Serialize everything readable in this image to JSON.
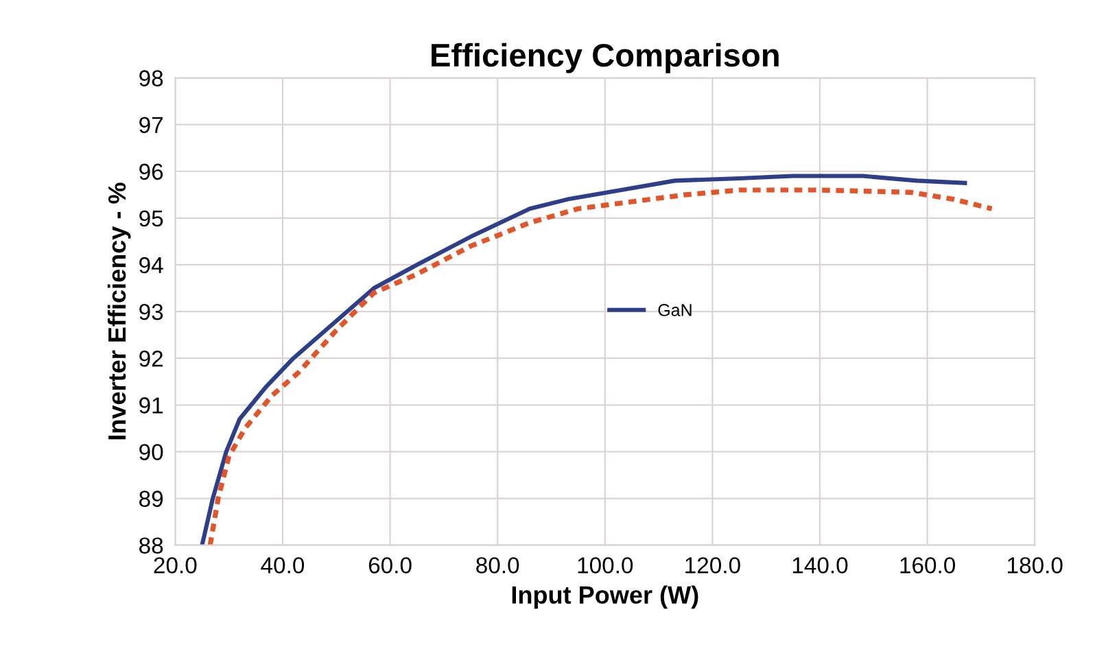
{
  "chart_data": {
    "type": "line",
    "title": "Efficiency Comparison",
    "xlabel": "Input Power (W)",
    "ylabel": "Inverter Efficiency - %",
    "series": [
      {
        "name": "GaN",
        "color": "#2e3f8a",
        "line_style": "solid",
        "x": [
          25,
          27,
          29.5,
          32,
          37,
          42,
          50,
          57,
          65,
          75,
          86,
          93,
          103,
          113,
          125,
          135,
          148,
          158,
          167
        ],
        "values": [
          88,
          89,
          90,
          90.7,
          91.4,
          92,
          92.8,
          93.5,
          94,
          94.6,
          95.2,
          95.4,
          95.6,
          95.8,
          95.85,
          95.9,
          95.9,
          95.8,
          95.75
        ]
      },
      {
        "color": "#e0552a",
        "line_style": "dashed",
        "x": [
          26.5,
          28,
          30,
          33,
          38,
          43,
          50,
          57,
          65,
          75,
          86,
          95,
          105,
          115,
          125,
          140,
          157,
          165,
          172
        ],
        "values": [
          88,
          89,
          89.9,
          90.5,
          91.2,
          91.7,
          92.6,
          93.4,
          93.8,
          94.4,
          94.9,
          95.2,
          95.35,
          95.5,
          95.6,
          95.6,
          95.55,
          95.4,
          95.2
        ]
      }
    ],
    "xlim": [
      20,
      180
    ],
    "xticks": [
      {
        "value": 20,
        "label": "20.0"
      },
      {
        "value": 40,
        "label": "40.0"
      },
      {
        "value": 60,
        "label": "60.0"
      },
      {
        "value": 80,
        "label": "80.0"
      },
      {
        "value": 100,
        "label": "100.0"
      },
      {
        "value": 120,
        "label": "120.0"
      },
      {
        "value": 140,
        "label": "140.0"
      },
      {
        "value": 160,
        "label": "160.0"
      },
      {
        "value": 180,
        "label": "180.0"
      }
    ],
    "ylim": [
      88,
      98
    ],
    "yticks": [
      88,
      89,
      90,
      91,
      92,
      93,
      94,
      95,
      96,
      97,
      98
    ],
    "grid": true,
    "legend": "center right",
    "marker": "none"
  }
}
